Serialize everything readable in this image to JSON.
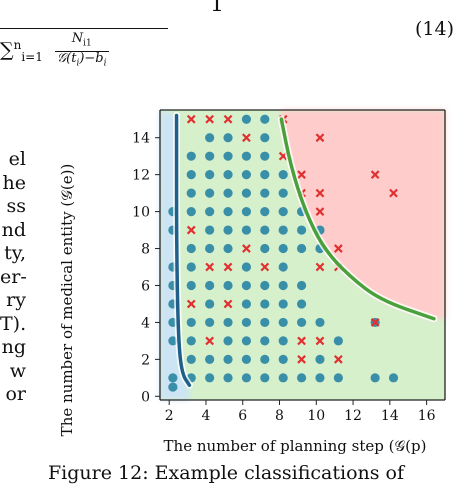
{
  "equation": {
    "numerator": "1",
    "sum": "∑",
    "sub_index": "i=1",
    "sup_index": "n",
    "frac_num": "N",
    "frac_num_sub": "i1",
    "frac_den": "𝒢(t",
    "frac_den_rest": ")−b",
    "frac_den_sub": "i",
    "frac_den_ti": "i",
    "number": "(14)"
  },
  "left_text": [
    "el",
    "he",
    "ss",
    "nd",
    "ty,",
    "er-",
    "ry",
    "T).",
    "ng",
    "w",
    "or"
  ],
  "caption": "Figure 12:  Example classifications of",
  "chart_data": {
    "type": "scatter",
    "xlabel": "The number of planning step (𝒢(p)",
    "ylabel": "The number of medical entity (𝒢(e))",
    "xlim": [
      1.5,
      17
    ],
    "ylim": [
      -0.2,
      15.5
    ],
    "xticks": [
      2,
      4,
      6,
      8,
      10,
      12,
      14,
      16
    ],
    "yticks": [
      0,
      2,
      4,
      6,
      8,
      10,
      12,
      14
    ],
    "colors": {
      "green_region": "#d6f0cc",
      "red_region": "#ffcccc",
      "blue_region": "#cce4f4",
      "blue_dot": "#3a8fa8",
      "red_x": "#e03030",
      "green_curve": "#4aa03a",
      "blue_curve": "#1f5f8a"
    },
    "blue_curve": [
      [
        2.4,
        15.2
      ],
      [
        2.4,
        8
      ],
      [
        2.5,
        3
      ],
      [
        2.7,
        1.2
      ],
      [
        3.1,
        0.6
      ]
    ],
    "green_curve": [
      [
        8.1,
        15
      ],
      [
        8.6,
        12.5
      ],
      [
        9.4,
        10
      ],
      [
        10.4,
        8
      ],
      [
        11.8,
        6.5
      ],
      [
        13.5,
        5.2
      ],
      [
        16.4,
        4.2
      ]
    ],
    "blue_dots": [
      [
        2.2,
        0.5
      ],
      [
        2.2,
        1
      ],
      [
        2.2,
        3
      ],
      [
        2.2,
        4
      ],
      [
        2.2,
        5
      ],
      [
        2.2,
        6
      ],
      [
        2.2,
        7
      ],
      [
        2.2,
        9
      ],
      [
        2.2,
        10
      ],
      [
        3.2,
        1
      ],
      [
        3.2,
        2
      ],
      [
        3.2,
        3
      ],
      [
        3.2,
        4
      ],
      [
        3.2,
        6
      ],
      [
        3.2,
        7
      ],
      [
        3.2,
        8
      ],
      [
        3.2,
        10
      ],
      [
        3.2,
        11
      ],
      [
        3.2,
        12
      ],
      [
        3.2,
        13
      ],
      [
        4.2,
        1
      ],
      [
        4.2,
        2
      ],
      [
        4.2,
        4
      ],
      [
        4.2,
        5
      ],
      [
        4.2,
        6
      ],
      [
        4.2,
        8
      ],
      [
        4.2,
        9
      ],
      [
        4.2,
        10
      ],
      [
        4.2,
        11
      ],
      [
        4.2,
        12
      ],
      [
        4.2,
        13
      ],
      [
        4.2,
        14
      ],
      [
        5.2,
        1
      ],
      [
        5.2,
        2
      ],
      [
        5.2,
        3
      ],
      [
        5.2,
        4
      ],
      [
        5.2,
        6
      ],
      [
        5.2,
        8
      ],
      [
        5.2,
        9
      ],
      [
        5.2,
        10
      ],
      [
        5.2,
        11
      ],
      [
        5.2,
        12
      ],
      [
        5.2,
        13
      ],
      [
        5.2,
        14
      ],
      [
        6.2,
        1
      ],
      [
        6.2,
        2
      ],
      [
        6.2,
        3
      ],
      [
        6.2,
        4
      ],
      [
        6.2,
        5
      ],
      [
        6.2,
        6
      ],
      [
        6.2,
        7
      ],
      [
        6.2,
        9
      ],
      [
        6.2,
        10
      ],
      [
        6.2,
        11
      ],
      [
        6.2,
        12
      ],
      [
        6.2,
        13
      ],
      [
        6.2,
        15
      ],
      [
        7.2,
        1
      ],
      [
        7.2,
        2
      ],
      [
        7.2,
        3
      ],
      [
        7.2,
        4
      ],
      [
        7.2,
        5
      ],
      [
        7.2,
        6
      ],
      [
        7.2,
        8
      ],
      [
        7.2,
        9
      ],
      [
        7.2,
        10
      ],
      [
        7.2,
        11
      ],
      [
        7.2,
        12
      ],
      [
        7.2,
        13
      ],
      [
        7.2,
        14
      ],
      [
        7.2,
        15
      ],
      [
        8.2,
        1
      ],
      [
        8.2,
        2
      ],
      [
        8.2,
        3
      ],
      [
        8.2,
        4
      ],
      [
        8.2,
        5
      ],
      [
        8.2,
        6
      ],
      [
        8.2,
        7
      ],
      [
        8.2,
        8
      ],
      [
        8.2,
        9
      ],
      [
        8.2,
        10
      ],
      [
        8.2,
        11
      ],
      [
        8.2,
        12
      ],
      [
        9.2,
        1
      ],
      [
        9.2,
        4
      ],
      [
        9.2,
        5
      ],
      [
        9.2,
        6
      ],
      [
        9.2,
        8
      ],
      [
        9.2,
        9
      ],
      [
        9.2,
        10
      ],
      [
        10.2,
        1
      ],
      [
        10.2,
        2
      ],
      [
        10.2,
        4
      ],
      [
        10.2,
        8
      ],
      [
        10.2,
        9
      ],
      [
        11.2,
        1
      ],
      [
        11.2,
        3
      ],
      [
        13.2,
        1
      ],
      [
        13.2,
        4
      ],
      [
        14.2,
        1
      ]
    ],
    "red_x": [
      [
        3.2,
        15
      ],
      [
        3.2,
        5
      ],
      [
        3.2,
        9
      ],
      [
        4.2,
        15
      ],
      [
        4.2,
        3
      ],
      [
        4.2,
        7
      ],
      [
        5.2,
        15
      ],
      [
        5.2,
        7
      ],
      [
        5.2,
        5
      ],
      [
        6.2,
        14
      ],
      [
        6.2,
        8
      ],
      [
        7.2,
        7
      ],
      [
        8.2,
        15
      ],
      [
        8.2,
        13
      ],
      [
        9.2,
        12
      ],
      [
        9.2,
        11
      ],
      [
        9.2,
        3
      ],
      [
        9.2,
        2
      ],
      [
        10.2,
        14
      ],
      [
        10.2,
        11
      ],
      [
        10.2,
        10
      ],
      [
        10.2,
        7
      ],
      [
        10.2,
        3
      ],
      [
        11.2,
        8
      ],
      [
        11.2,
        7
      ],
      [
        11.2,
        2
      ],
      [
        13.2,
        12
      ],
      [
        13.2,
        4
      ],
      [
        14.2,
        11
      ]
    ]
  }
}
